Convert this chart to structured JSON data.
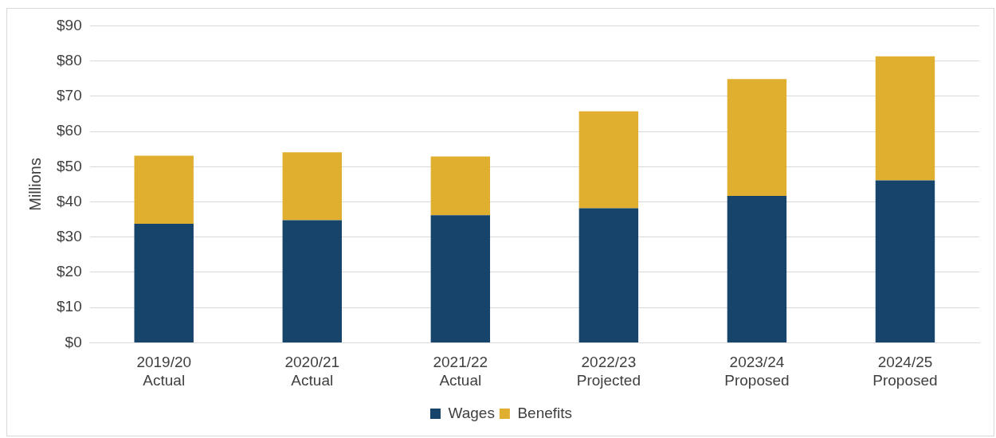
{
  "chart_data": {
    "type": "bar",
    "stacked": true,
    "ylabel": "Millions",
    "categories": [
      "2019/20\nActual",
      "2020/21\nActual",
      "2021/22\nActual",
      "2022/23\nProjected",
      "2023/24\nProposed",
      "2024/25\nProposed"
    ],
    "series": [
      {
        "name": "Wages",
        "color": "#17446a",
        "values": [
          33.8,
          34.8,
          36.2,
          38.2,
          41.7,
          46.1
        ]
      },
      {
        "name": "Benefits",
        "color": "#e1af2f",
        "values": [
          19.3,
          19.3,
          16.7,
          27.5,
          33.2,
          35.2
        ]
      }
    ],
    "ylim": [
      0,
      90
    ],
    "yticks": [
      {
        "value": 0,
        "label": "$0"
      },
      {
        "value": 10,
        "label": "$10"
      },
      {
        "value": 20,
        "label": "$20"
      },
      {
        "value": 30,
        "label": "$30"
      },
      {
        "value": 40,
        "label": "$40"
      },
      {
        "value": 50,
        "label": "$50"
      },
      {
        "value": 60,
        "label": "$60"
      },
      {
        "value": 70,
        "label": "$70"
      },
      {
        "value": 80,
        "label": "$80"
      },
      {
        "value": 90,
        "label": "$90"
      }
    ],
    "grid": "y",
    "legend": "bottom"
  }
}
